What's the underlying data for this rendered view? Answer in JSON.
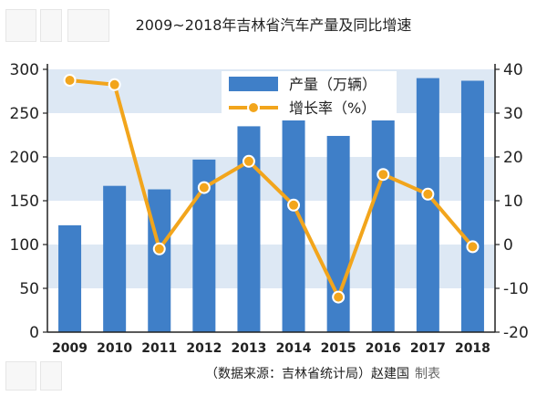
{
  "title": "2009~2018年吉林省汽车产量及同比增速",
  "source": {
    "text": "（数据来源：吉林省统计局）赵建国",
    "made": "制表"
  },
  "colors": {
    "bar": "#3f7fc8",
    "line": "#f2a51c",
    "band": "#dde8f4",
    "axis": "#222222"
  },
  "chart_data": {
    "type": "bar",
    "categories": [
      "2009",
      "2010",
      "2011",
      "2012",
      "2013",
      "2014",
      "2015",
      "2016",
      "2017",
      "2018"
    ],
    "series": [
      {
        "name": "产量（万辆）",
        "type": "bar",
        "axis": "left",
        "values": [
          122,
          167,
          163,
          197,
          235,
          250,
          224,
          250,
          290,
          287
        ]
      },
      {
        "name": "增长率（%）",
        "type": "line",
        "axis": "right",
        "values": [
          37.5,
          36.5,
          -1,
          13,
          19,
          9,
          -12,
          16,
          11.5,
          -0.5
        ]
      }
    ],
    "left_axis": {
      "ylim": [
        0,
        300
      ],
      "ticks": [
        "0",
        "50",
        "100",
        "150",
        "200",
        "250",
        "300"
      ]
    },
    "right_axis": {
      "ylim": [
        -20,
        40
      ],
      "ticks": [
        "-20",
        "-10",
        "0",
        "10",
        "20",
        "30",
        "40"
      ]
    },
    "legend": {
      "position": "top-center",
      "labels": [
        "产量（万辆）",
        "增长率（%）"
      ]
    },
    "grid": "horizontal bands"
  }
}
